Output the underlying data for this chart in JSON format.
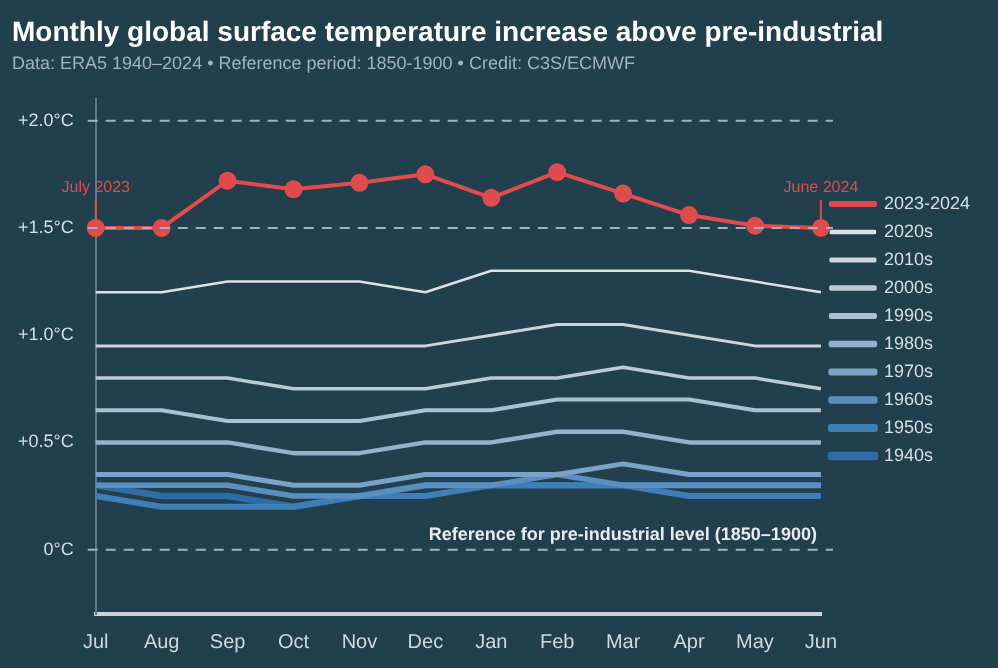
{
  "chart_data": {
    "type": "line",
    "title": "Monthly global surface temperature increase above pre-industrial",
    "subtitle": "Data: ERA5 1940–2024 • Reference period: 1850-1900 • Credit: C3S/ECMWF",
    "categories": [
      "Jul",
      "Aug",
      "Sep",
      "Oct",
      "Nov",
      "Dec",
      "Jan",
      "Feb",
      "Mar",
      "Apr",
      "May",
      "Jun"
    ],
    "series": [
      {
        "name": "2023-2024",
        "color": "#e04b4b",
        "marker": "circle",
        "values": [
          1.5,
          1.5,
          1.72,
          1.68,
          1.71,
          1.75,
          1.64,
          1.76,
          1.66,
          1.56,
          1.51,
          1.5
        ]
      },
      {
        "name": "2020s",
        "color": "#dde2e6",
        "values": [
          1.2,
          1.2,
          1.25,
          1.25,
          1.25,
          1.2,
          1.3,
          1.3,
          1.3,
          1.3,
          1.25,
          1.2
        ]
      },
      {
        "name": "2010s",
        "color": "#cdd5db",
        "values": [
          0.95,
          0.95,
          0.95,
          0.95,
          0.95,
          0.95,
          1.0,
          1.05,
          1.05,
          1.0,
          0.95,
          0.95
        ]
      },
      {
        "name": "2000s",
        "color": "#bccbd6",
        "values": [
          0.8,
          0.8,
          0.8,
          0.75,
          0.75,
          0.75,
          0.8,
          0.8,
          0.85,
          0.8,
          0.8,
          0.75
        ]
      },
      {
        "name": "1990s",
        "color": "#a9c1d2",
        "values": [
          0.65,
          0.65,
          0.6,
          0.6,
          0.6,
          0.65,
          0.65,
          0.7,
          0.7,
          0.7,
          0.65,
          0.65
        ]
      },
      {
        "name": "1980s",
        "color": "#93b3cc",
        "values": [
          0.5,
          0.5,
          0.5,
          0.45,
          0.45,
          0.5,
          0.5,
          0.55,
          0.55,
          0.5,
          0.5,
          0.5
        ]
      },
      {
        "name": "1970s",
        "color": "#7aa3c7",
        "values": [
          0.35,
          0.35,
          0.35,
          0.3,
          0.3,
          0.35,
          0.35,
          0.35,
          0.4,
          0.35,
          0.35,
          0.35
        ]
      },
      {
        "name": "1960s",
        "color": "#5a8fbf",
        "values": [
          0.3,
          0.3,
          0.3,
          0.25,
          0.25,
          0.3,
          0.3,
          0.35,
          0.3,
          0.3,
          0.3,
          0.3
        ]
      },
      {
        "name": "1950s",
        "color": "#3f7fb5",
        "values": [
          0.25,
          0.2,
          0.2,
          0.2,
          0.25,
          0.25,
          0.3,
          0.3,
          0.3,
          0.25,
          0.25,
          0.25
        ]
      },
      {
        "name": "1940s",
        "color": "#2e6da4",
        "values": [
          0.3,
          0.25,
          0.25,
          0.2,
          0.25,
          0.3,
          0.3,
          0.3,
          0.3,
          0.3,
          0.3,
          0.3
        ]
      }
    ],
    "ylim": [
      -0.3,
      2.1
    ],
    "yticks": [
      {
        "value": 0,
        "label": "0°C"
      },
      {
        "value": 0.5,
        "label": "+0.5°C"
      },
      {
        "value": 1,
        "label": "+1.0°C"
      },
      {
        "value": 1.5,
        "label": "+1.5°C"
      },
      {
        "value": 2,
        "label": "+2.0°C"
      }
    ],
    "ref_lines": [
      {
        "axis": "y",
        "value": 0,
        "label": "Reference for pre-industrial level (1850–1900)",
        "line_style": "dashed"
      },
      {
        "axis": "y",
        "value": 1.5,
        "line_style": "dashed"
      },
      {
        "axis": "y",
        "value": 2,
        "line_style": "dashed"
      }
    ],
    "annotations": [
      {
        "text": "July 2023",
        "x": "Jul",
        "y": 1.5
      },
      {
        "text": "June 2024",
        "x": "Jun",
        "y": 1.5
      }
    ],
    "grid": false,
    "legend": "right",
    "marker": "none",
    "line_style": "solid"
  }
}
